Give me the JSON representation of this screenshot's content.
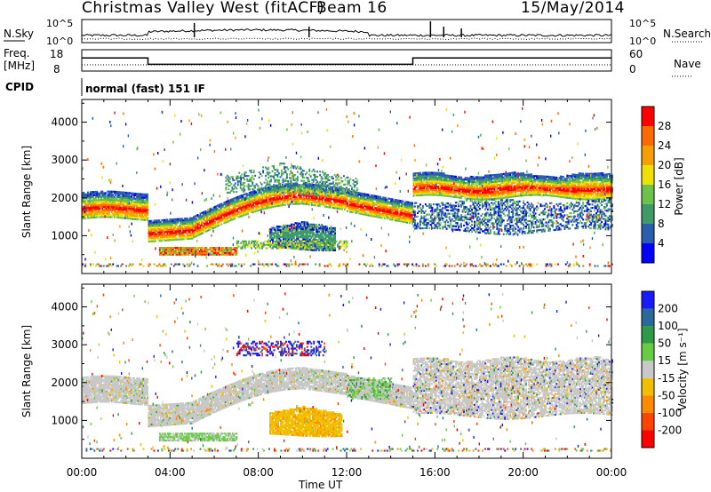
{
  "header": {
    "station": "Christmas Valley West (fitACF)",
    "beam": "Beam 16",
    "date": "15/May/2014"
  },
  "summary_panels": {
    "nsky_label": "N.Sky",
    "nsearch_label": "N.Search",
    "freq_label_line1": "Freq.",
    "freq_label_line2": "[MHz]",
    "nave_label": "Nave",
    "cpid_label": "CPID",
    "cpid_text": "normal (fast) 151 IF",
    "noise_ticks": [
      "10^5",
      "10^0"
    ],
    "freq_ticks": [
      "18",
      "8"
    ],
    "nave_ticks": [
      "60",
      "0"
    ]
  },
  "colors": {
    "power_scale": [
      "#0000ff",
      "#2a5db0",
      "#3f9a6a",
      "#6cc24a",
      "#f0e000",
      "#f5a000",
      "#ff6a00",
      "#ff0000"
    ],
    "velocity_scale": [
      "#1a1aff",
      "#2a6a9a",
      "#2e9a46",
      "#66cc44",
      "#c8c8c8",
      "#f0c000",
      "#ff8a00",
      "#ff4400",
      "#ff0000"
    ]
  },
  "chart_data": [
    {
      "type": "heatmap",
      "name": "noise_and_frequency_summary",
      "x": [
        "00:00",
        "04:00",
        "08:00",
        "12:00",
        "16:00",
        "20:00",
        "00:00"
      ],
      "series": [
        {
          "name": "N.Sky",
          "scale": "log",
          "ylim": [
            1,
            100000
          ]
        },
        {
          "name": "N.Search",
          "scale": "log",
          "ylim": [
            1,
            100000
          ]
        },
        {
          "name": "Freq. [MHz]",
          "ylim": [
            8,
            18
          ],
          "segments": [
            {
              "start": "00:00",
              "end": "03:00",
              "value": 14
            },
            {
              "start": "03:00",
              "end": "15:00",
              "value": 10
            },
            {
              "start": "15:00",
              "end": "24:00",
              "value": 14
            }
          ]
        },
        {
          "name": "Nave",
          "ylim": [
            0,
            60
          ]
        }
      ]
    },
    {
      "type": "heatmap",
      "name": "power",
      "title": "",
      "xlabel": "",
      "ylabel": "Slant Range [km]",
      "x": [
        "00:00",
        "04:00",
        "08:00",
        "12:00",
        "16:00",
        "20:00",
        "00:00"
      ],
      "xlim_hours": [
        0,
        24
      ],
      "ylim": [
        0,
        4600
      ],
      "yticks": [
        "1000",
        "2000",
        "3000",
        "4000"
      ],
      "colorbar": {
        "label": "Power [dB]",
        "ticks": [
          "4",
          "8",
          "12",
          "16",
          "20",
          "24",
          "28"
        ],
        "range": [
          0,
          30
        ]
      }
    },
    {
      "type": "heatmap",
      "name": "velocity",
      "title": "",
      "xlabel": "Time UT",
      "ylabel": "Slant Range [km]",
      "x": [
        "00:00",
        "04:00",
        "08:00",
        "12:00",
        "16:00",
        "20:00",
        "00:00"
      ],
      "xlim_hours": [
        0,
        24
      ],
      "ylim": [
        0,
        4600
      ],
      "yticks": [
        "1000",
        "2000",
        "3000",
        "4000"
      ],
      "colorbar": {
        "label": "Velocity [m s⁻¹]",
        "ticks": [
          "200",
          "100",
          "50",
          "15",
          "-15",
          "-50",
          "-100",
          "-200"
        ],
        "range": [
          -250,
          250
        ]
      }
    }
  ]
}
